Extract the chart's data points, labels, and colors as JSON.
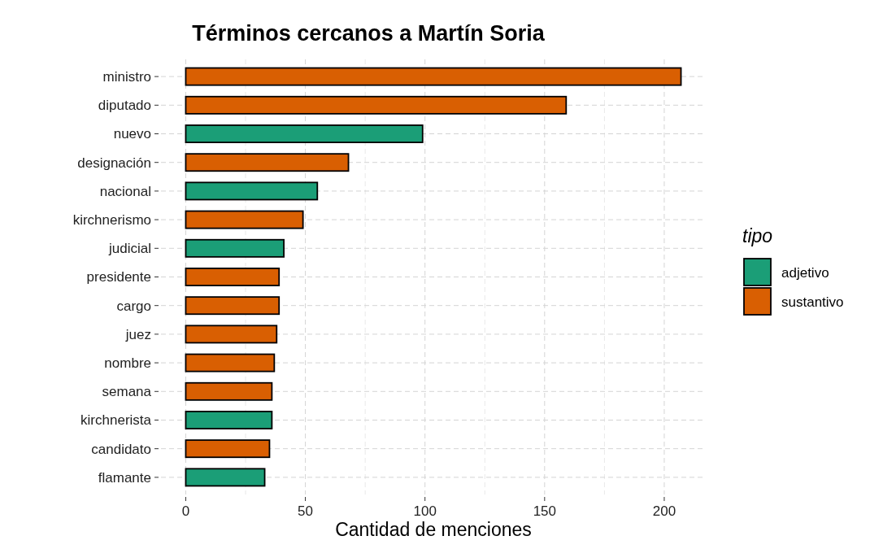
{
  "chart_data": {
    "type": "bar",
    "orientation": "horizontal",
    "title": "Términos cercanos a Martín Soria",
    "xlabel": "Cantidad de menciones",
    "legend_title": "tipo",
    "legend": "right",
    "grid": true,
    "categories": [
      "ministro",
      "diputado",
      "nuevo",
      "designación",
      "nacional",
      "kirchnerismo",
      "judicial",
      "presidente",
      "cargo",
      "juez",
      "nombre",
      "semana",
      "kirchnerista",
      "candidato",
      "flamante"
    ],
    "series": [
      {
        "name": "adjetivo",
        "color": "#1b9e77",
        "values": [
          null,
          null,
          99,
          null,
          55,
          null,
          41,
          null,
          null,
          null,
          null,
          null,
          36,
          null,
          33
        ]
      },
      {
        "name": "sustantivo",
        "color": "#d95f02",
        "values": [
          207,
          159,
          null,
          68,
          null,
          49,
          null,
          39,
          39,
          38,
          37,
          36,
          null,
          35,
          null
        ]
      }
    ],
    "xlim": [
      -10.35,
      217.35
    ],
    "xticks": [
      0,
      {
        "value": 25,
        "label": null
      },
      50,
      {
        "value": 75,
        "label": null
      },
      100,
      {
        "value": 125,
        "label": null
      },
      150,
      {
        "value": 175,
        "label": null
      },
      200
    ]
  }
}
